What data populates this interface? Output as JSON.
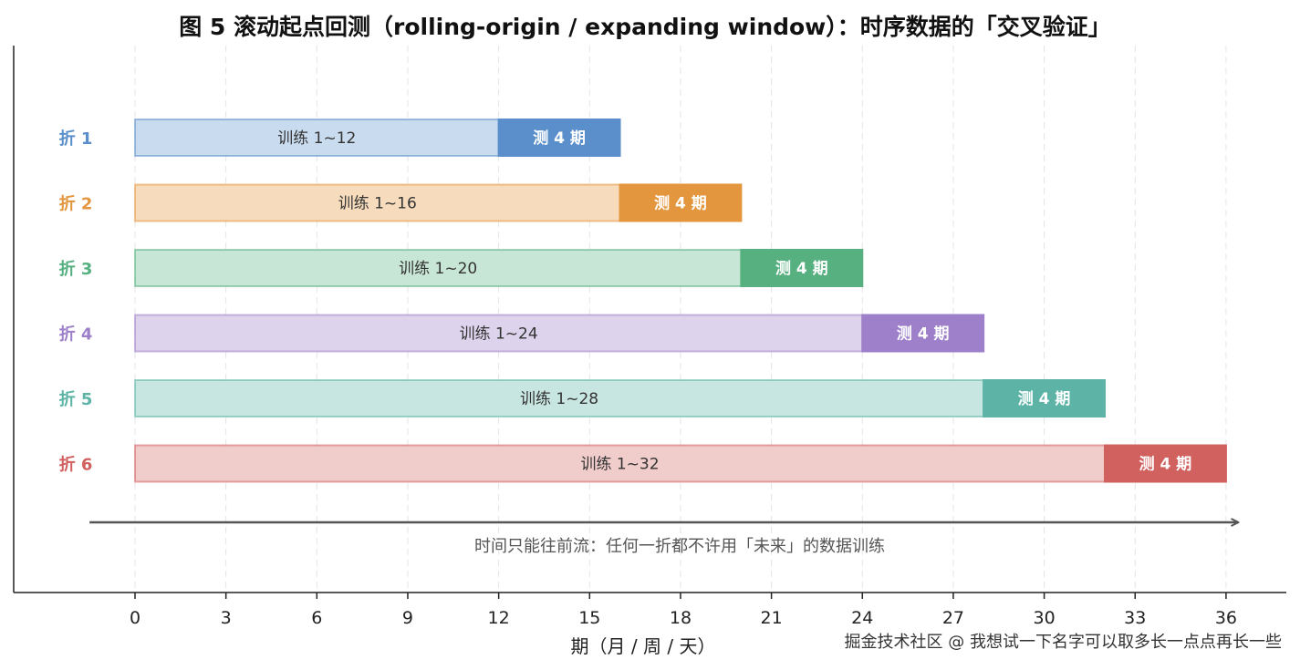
{
  "chart_data": {
    "type": "bar",
    "orientation": "horizontal-stacked",
    "title": "图 5  滚动起点回测（rolling-origin / expanding window）：时序数据的「交叉验证」",
    "xlabel": "期（月 / 周 / 天）",
    "ylabel": "",
    "xlim": [
      -4,
      37
    ],
    "xticks": [
      0,
      3,
      6,
      9,
      12,
      15,
      18,
      21,
      24,
      27,
      30,
      33,
      36
    ],
    "grid": "vertical dashed",
    "categories": [
      "折 1",
      "折 2",
      "折 3",
      "折 4",
      "折 5",
      "折 6"
    ],
    "series": [
      {
        "name": "训练",
        "values": [
          12,
          16,
          20,
          24,
          28,
          32
        ]
      },
      {
        "name": "测试",
        "values": [
          4,
          4,
          4,
          4,
          4,
          4
        ]
      }
    ],
    "folds": [
      {
        "label": "折 1",
        "train_end": 12,
        "test_len": 4,
        "train_text": "训练 1~12",
        "test_text": "测 4 期",
        "color": "#5b8fcb",
        "train_fill": "#c9dbee"
      },
      {
        "label": "折 2",
        "train_end": 16,
        "test_len": 4,
        "train_text": "训练 1~16",
        "test_text": "测 4 期",
        "color": "#e3963e",
        "train_fill": "#f6dcbc"
      },
      {
        "label": "折 3",
        "train_end": 20,
        "test_len": 4,
        "train_text": "训练 1~20",
        "test_text": "测 4 期",
        "color": "#56b07f",
        "train_fill": "#c8e6d5"
      },
      {
        "label": "折 4",
        "train_end": 24,
        "test_len": 4,
        "train_text": "训练 1~24",
        "test_text": "测 4 期",
        "color": "#9d80c9",
        "train_fill": "#ddd3ec"
      },
      {
        "label": "折 5",
        "train_end": 28,
        "test_len": 4,
        "train_text": "训练 1~28",
        "test_text": "测 4 期",
        "color": "#5cb3a6",
        "train_fill": "#c8e6e1"
      },
      {
        "label": "折 6",
        "train_end": 32,
        "test_len": 4,
        "train_text": "训练 1~32",
        "test_text": "测 4 期",
        "color": "#d0615f",
        "train_fill": "#f0cccb"
      }
    ],
    "annotation": "时间只能往前流：任何一折都不许用「未来」的数据训练",
    "arrow": {
      "from": -1.5,
      "to": 36.5
    }
  },
  "watermark": "掘金技术社区 @ 我想试一下名字可以取多长一点点再长一些"
}
